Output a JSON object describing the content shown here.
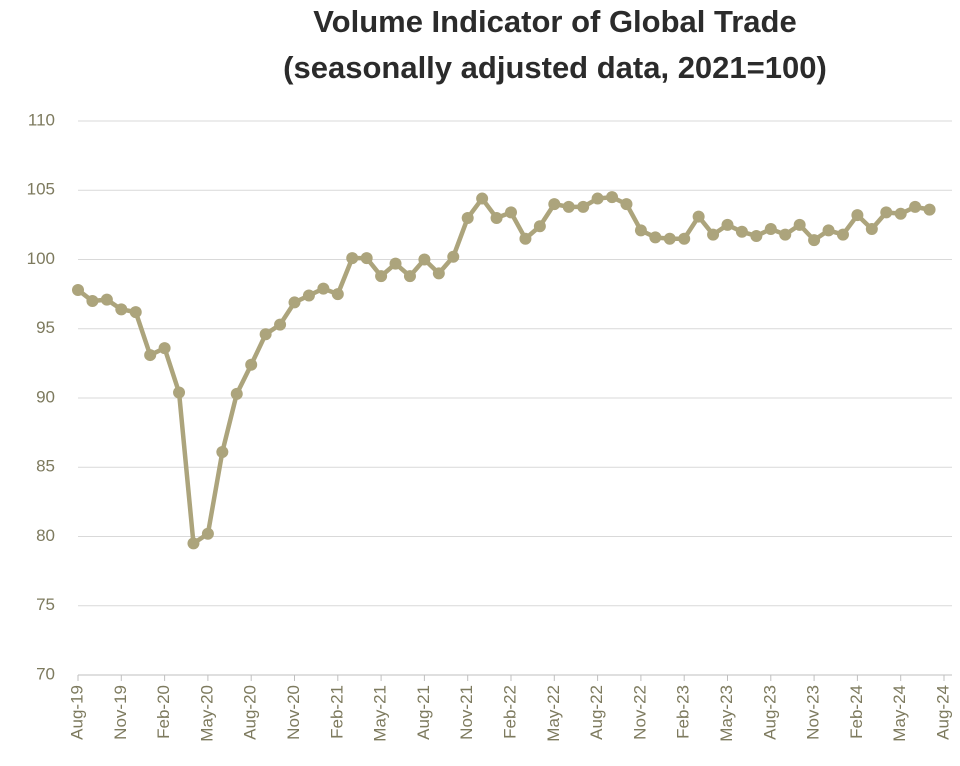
{
  "chart_data": {
    "type": "line",
    "title": "Volume Indicator of Global Trade",
    "subtitle": "(seasonally adjusted data, 2021=100)",
    "categories": [
      "Aug-19",
      null,
      null,
      "Nov-19",
      null,
      null,
      "Feb-20",
      null,
      null,
      "May-20",
      null,
      null,
      "Aug-20",
      null,
      null,
      "Nov-20",
      null,
      null,
      "Feb-21",
      null,
      null,
      "May-21",
      null,
      null,
      "Aug-21",
      null,
      null,
      "Nov-21",
      null,
      null,
      "Feb-22",
      null,
      null,
      "May-22",
      null,
      null,
      "Aug-22",
      null,
      null,
      "Nov-22",
      null,
      null,
      "Feb-23",
      null,
      null,
      "May-23",
      null,
      null,
      "Aug-23",
      null,
      null,
      "Nov-23",
      null,
      null,
      "Feb-24",
      null,
      null,
      "May-24",
      null,
      null,
      "Aug-24"
    ],
    "values": [
      97.8,
      97.0,
      97.1,
      96.4,
      96.2,
      93.1,
      93.6,
      90.4,
      79.5,
      80.2,
      86.1,
      90.3,
      92.4,
      94.6,
      95.3,
      96.9,
      97.4,
      97.9,
      97.5,
      100.1,
      100.1,
      98.8,
      99.7,
      98.8,
      100.0,
      99.0,
      100.2,
      103.0,
      104.4,
      103.0,
      103.4,
      101.5,
      102.4,
      104.0,
      103.8,
      103.8,
      104.4,
      104.5,
      104.0,
      102.1,
      101.6,
      101.5,
      101.5,
      103.1,
      101.8,
      102.5,
      102.0,
      101.7,
      102.2,
      101.8,
      102.5,
      101.4,
      102.1,
      101.8,
      103.2,
      102.2,
      103.4,
      103.3,
      103.8,
      103.6,
      null
    ],
    "color": "#aca47c",
    "ylim": [
      70,
      110
    ],
    "yticks": [
      70,
      75,
      80,
      85,
      90,
      95,
      100,
      105,
      110
    ],
    "grid": true
  }
}
